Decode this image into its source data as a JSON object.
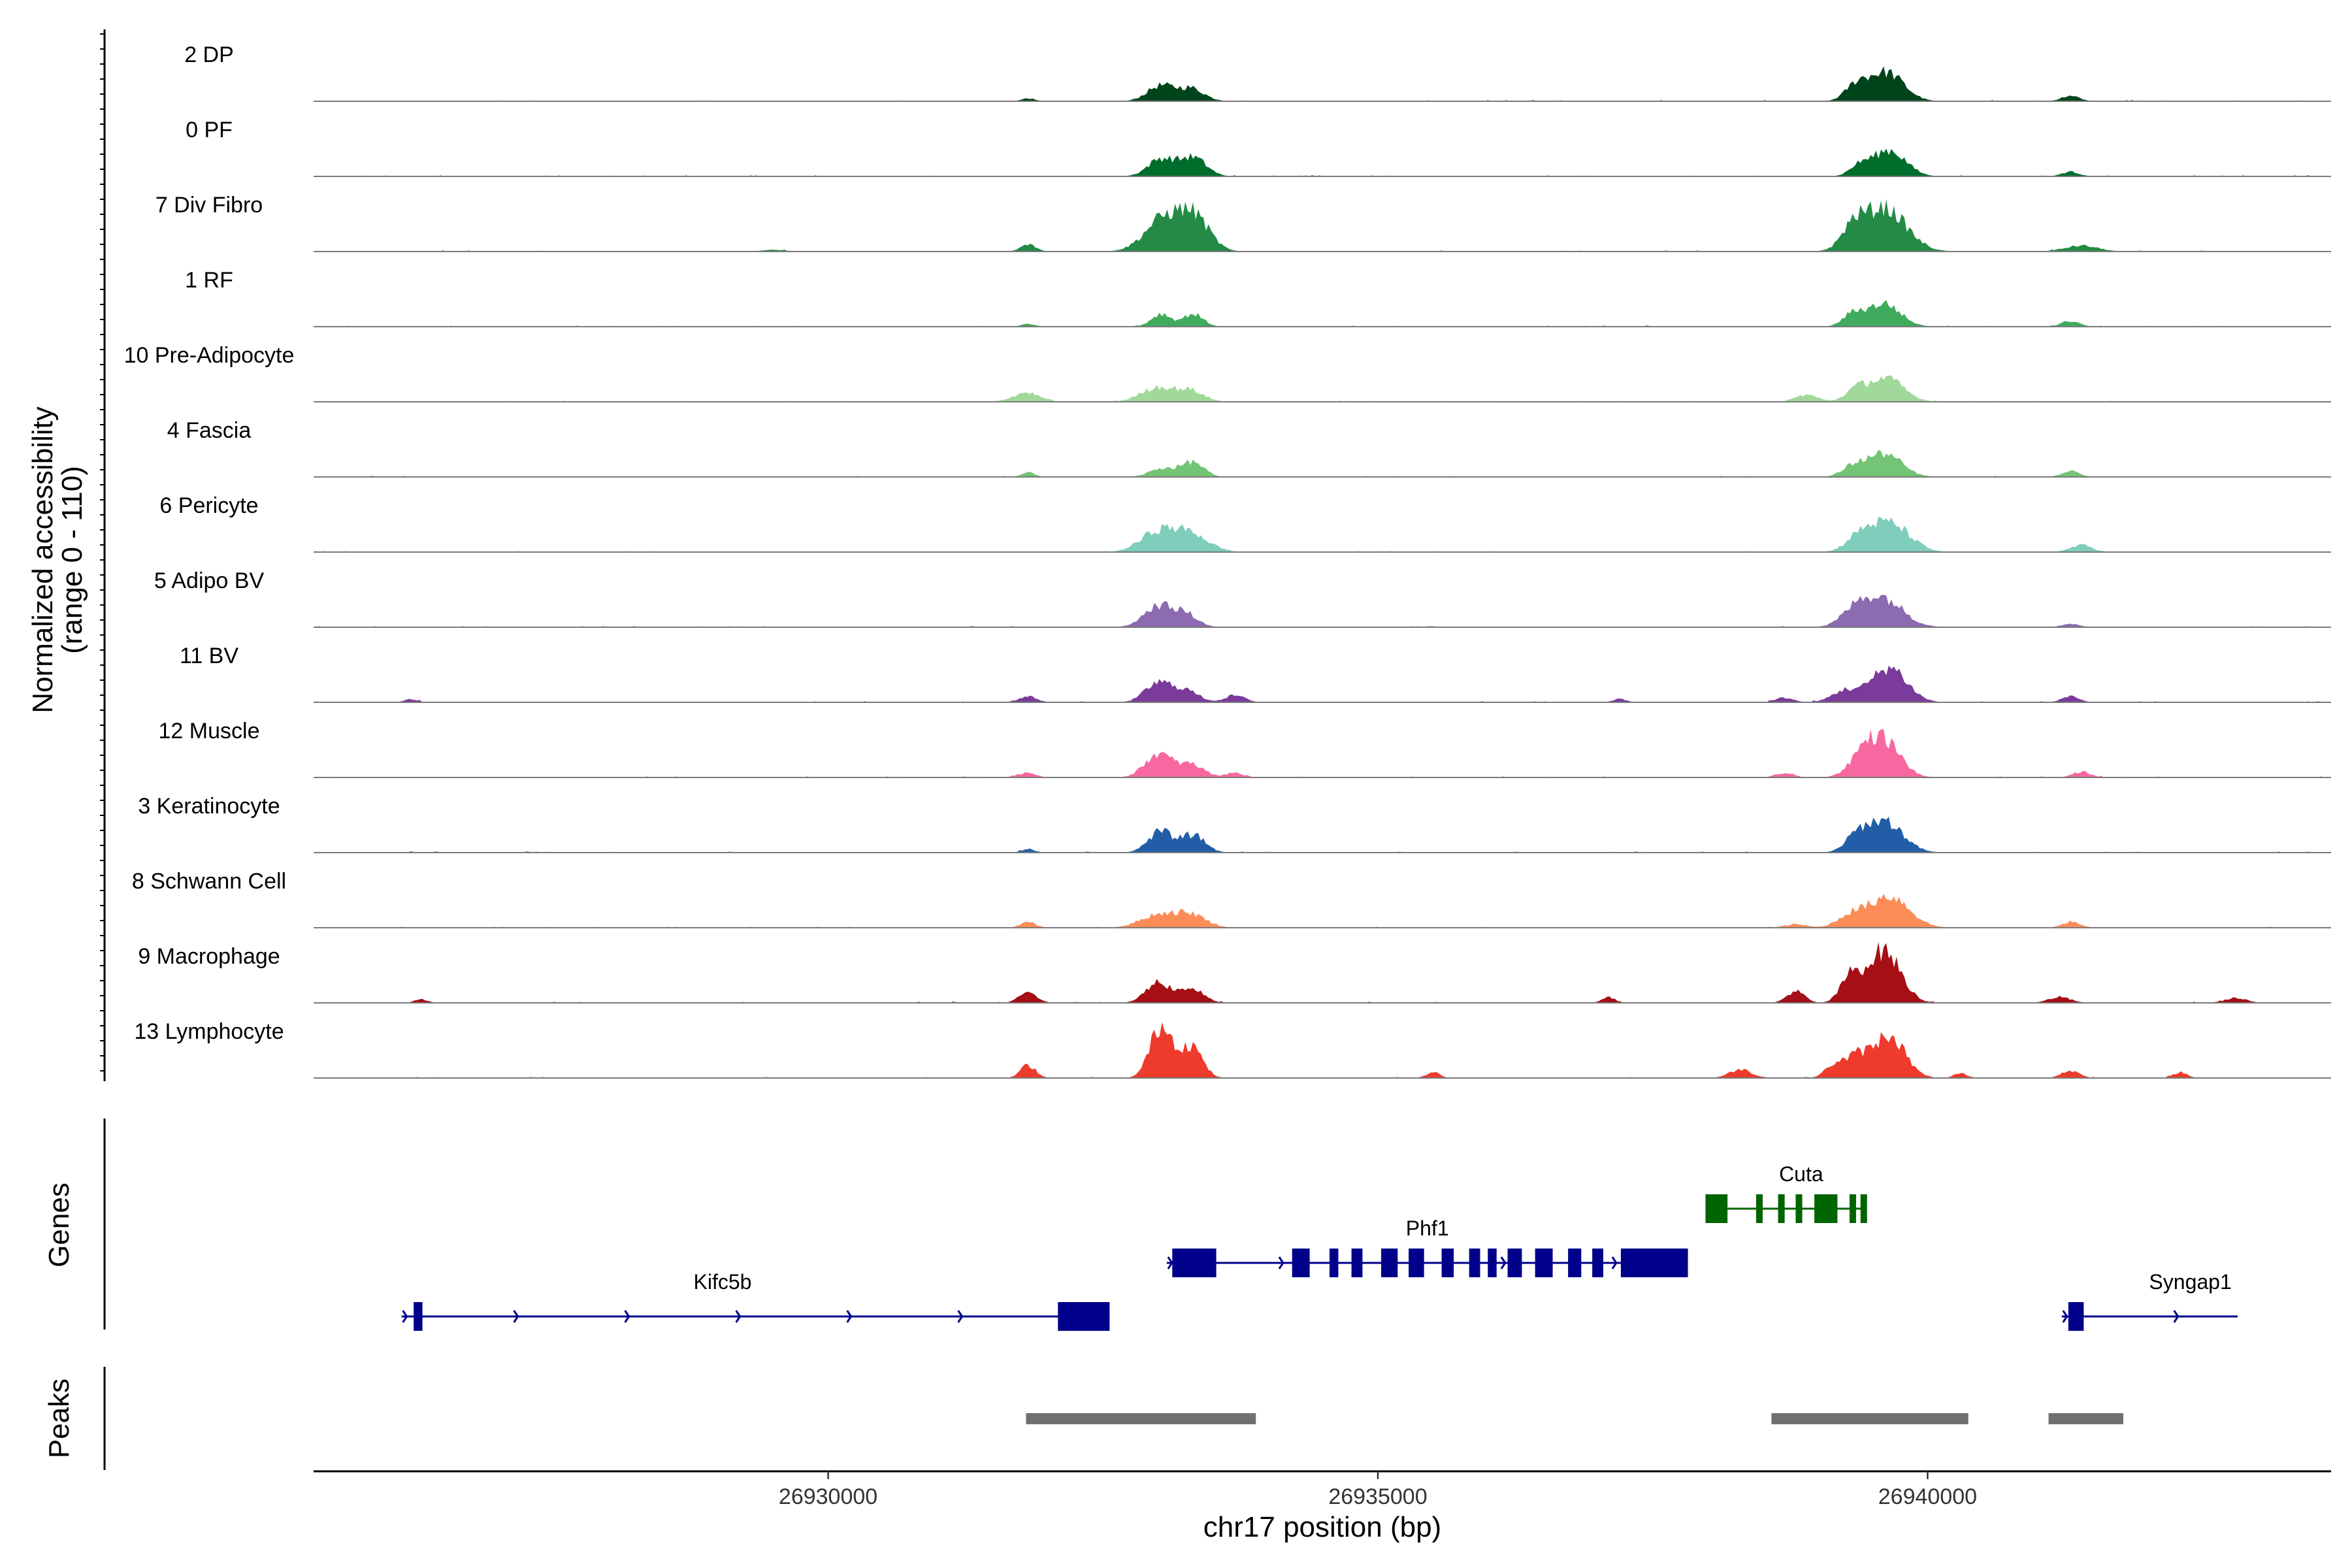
{
  "chart_data": {
    "type": "area",
    "chromosome": "chr17",
    "xlabel": "chr17 position (bp)",
    "ylabel_line1": "Normalized accessibility",
    "ylabel_line2": "(range 0 - 110)",
    "y_range": [
      0,
      110
    ],
    "x_range": [
      26925320,
      26943670
    ],
    "x_ticks": [
      {
        "value": 26930000,
        "label": "26930000"
      },
      {
        "value": 26935000,
        "label": "26935000"
      },
      {
        "value": 26940000,
        "label": "26940000"
      }
    ],
    "tracks": [
      {
        "name": "2 DP",
        "color": "#00441b",
        "peaks": [
          [
            26933020,
            26,
            120
          ],
          [
            26933300,
            22,
            120
          ],
          [
            26939620,
            50,
            160
          ],
          [
            26939350,
            24,
            100
          ],
          [
            26941300,
            10,
            80
          ],
          [
            26931820,
            5,
            60
          ]
        ]
      },
      {
        "name": "0 PF",
        "color": "#006d2c",
        "peaks": [
          [
            26933030,
            30,
            120
          ],
          [
            26933320,
            32,
            120
          ],
          [
            26939650,
            45,
            150
          ],
          [
            26939380,
            16,
            90
          ],
          [
            26941300,
            8,
            80
          ]
        ]
      },
      {
        "name": "7 Div Fibro",
        "color": "#238b45",
        "peaks": [
          [
            26933050,
            55,
            170
          ],
          [
            26933330,
            55,
            140
          ],
          [
            26939600,
            75,
            200
          ],
          [
            26939320,
            30,
            100
          ],
          [
            26931820,
            12,
            70
          ],
          [
            26941400,
            10,
            150
          ],
          [
            26929500,
            3,
            100
          ]
        ]
      },
      {
        "name": "1 RF",
        "color": "#41ab5d",
        "peaks": [
          [
            26933030,
            22,
            90
          ],
          [
            26933320,
            22,
            90
          ],
          [
            26939600,
            40,
            150
          ],
          [
            26939320,
            20,
            90
          ],
          [
            26941300,
            10,
            80
          ],
          [
            26931820,
            5,
            60
          ]
        ]
      },
      {
        "name": "10 Pre-Adipocyte",
        "color": "#a1d99b",
        "peaks": [
          [
            26933000,
            25,
            150
          ],
          [
            26933300,
            18,
            120
          ],
          [
            26939620,
            40,
            160
          ],
          [
            26939350,
            18,
            100
          ],
          [
            26931800,
            16,
            120
          ],
          [
            26938900,
            12,
            100
          ]
        ]
      },
      {
        "name": "4 Fascia",
        "color": "#74c476",
        "peaks": [
          [
            26933050,
            15,
            120
          ],
          [
            26933320,
            25,
            100
          ],
          [
            26939600,
            40,
            160
          ],
          [
            26939320,
            15,
            100
          ],
          [
            26941300,
            10,
            80
          ],
          [
            26931820,
            8,
            60
          ]
        ]
      },
      {
        "name": "6 Pericyte",
        "color": "#7fcdbb",
        "peaks": [
          [
            26933000,
            34,
            160
          ],
          [
            26933300,
            30,
            160
          ],
          [
            26939650,
            50,
            180
          ],
          [
            26939380,
            22,
            120
          ],
          [
            26941400,
            12,
            100
          ]
        ]
      },
      {
        "name": "5 Adipo BV",
        "color": "#8c6bb1",
        "peaks": [
          [
            26933000,
            36,
            130
          ],
          [
            26933250,
            22,
            110
          ],
          [
            26939600,
            48,
            180
          ],
          [
            26939350,
            26,
            130
          ],
          [
            26941300,
            6,
            80
          ]
        ]
      },
      {
        "name": "11 BV",
        "color": "#7a3b9a",
        "peaks": [
          [
            26933000,
            32,
            120
          ],
          [
            26933250,
            20,
            120
          ],
          [
            26939650,
            60,
            160
          ],
          [
            26939250,
            20,
            120
          ],
          [
            26931820,
            10,
            80
          ],
          [
            26933700,
            12,
            90
          ],
          [
            26941300,
            10,
            80
          ],
          [
            26938700,
            8,
            80
          ],
          [
            26937200,
            6,
            60
          ],
          [
            26926200,
            5,
            60
          ]
        ]
      },
      {
        "name": "12 Muscle",
        "color": "#f768a1",
        "peaks": [
          [
            26933000,
            40,
            120
          ],
          [
            26933300,
            22,
            120
          ],
          [
            26939600,
            62,
            150
          ],
          [
            26939400,
            30,
            120
          ],
          [
            26931800,
            8,
            80
          ],
          [
            26941400,
            10,
            80
          ],
          [
            26933700,
            8,
            80
          ],
          [
            26938700,
            8,
            80
          ]
        ]
      },
      {
        "name": "3 Keratinocyte",
        "color": "#225ea8",
        "peaks": [
          [
            26933020,
            36,
            110
          ],
          [
            26933320,
            30,
            110
          ],
          [
            26939600,
            55,
            170
          ],
          [
            26939350,
            20,
            100
          ],
          [
            26931820,
            6,
            60
          ]
        ]
      },
      {
        "name": "8 Schwann Cell",
        "color": "#fc8d59",
        "peaks": [
          [
            26933000,
            22,
            160
          ],
          [
            26933300,
            22,
            140
          ],
          [
            26939650,
            55,
            180
          ],
          [
            26939300,
            20,
            120
          ],
          [
            26931820,
            10,
            70
          ],
          [
            26941300,
            10,
            80
          ],
          [
            26938800,
            6,
            100
          ]
        ]
      },
      {
        "name": "9 Macrophage",
        "color": "#a50f15",
        "peaks": [
          [
            26933000,
            35,
            110
          ],
          [
            26933300,
            25,
            110
          ],
          [
            26939600,
            90,
            150
          ],
          [
            26939300,
            42,
            90
          ],
          [
            26938800,
            20,
            80
          ],
          [
            26931820,
            18,
            80
          ],
          [
            26937100,
            10,
            60
          ],
          [
            26941200,
            10,
            100
          ],
          [
            26942800,
            8,
            100
          ],
          [
            26926300,
            6,
            60
          ]
        ]
      },
      {
        "name": "13 Lymphocyte",
        "color": "#ef3b2c",
        "peaks": [
          [
            26933030,
            90,
            100
          ],
          [
            26933300,
            55,
            100
          ],
          [
            26939650,
            75,
            140
          ],
          [
            26939350,
            35,
            100
          ],
          [
            26939150,
            22,
            80
          ],
          [
            26931820,
            22,
            70
          ],
          [
            26938300,
            15,
            100
          ],
          [
            26941300,
            12,
            80
          ],
          [
            26935500,
            10,
            60
          ],
          [
            26942300,
            10,
            60
          ],
          [
            26940300,
            8,
            60
          ]
        ]
      }
    ],
    "genes_panel_title": "Genes",
    "genes": [
      {
        "name": "Kifc5b",
        "strand": "+",
        "color": "#00008b",
        "start": 26926120,
        "end": 26932560,
        "label_pos": 26929040,
        "row": 2,
        "exons": [
          [
            26926230,
            26926310
          ],
          [
            26932090,
            26932560
          ]
        ]
      },
      {
        "name": "Phf1",
        "strand": "+",
        "color": "#00008b",
        "start": 26933080,
        "end": 26937820,
        "label_pos": 26935450,
        "row": 1,
        "exons": [
          [
            26933130,
            26933530
          ],
          [
            26934220,
            26934380
          ],
          [
            26934560,
            26934640
          ],
          [
            26934760,
            26934860
          ],
          [
            26935030,
            26935180
          ],
          [
            26935280,
            26935420
          ],
          [
            26935580,
            26935690
          ],
          [
            26935830,
            26935930
          ],
          [
            26936000,
            26936080
          ],
          [
            26936180,
            26936310
          ],
          [
            26936430,
            26936590
          ],
          [
            26936730,
            26936850
          ],
          [
            26936950,
            26937050
          ],
          [
            26937210,
            26937820
          ]
        ]
      },
      {
        "name": "Cuta",
        "strand": "-",
        "color": "#006400",
        "start": 26937980,
        "end": 26939440,
        "label_pos": 26938850,
        "row": 0,
        "exons": [
          [
            26937980,
            26938180
          ],
          [
            26938440,
            26938500
          ],
          [
            26938640,
            26938700
          ],
          [
            26938800,
            26938860
          ],
          [
            26938970,
            26939180
          ],
          [
            26939290,
            26939330
          ],
          [
            26939390,
            26939440
          ]
        ]
      },
      {
        "name": "Syngap1",
        "strand": "+",
        "color": "#00008b",
        "start": 26941220,
        "end": 26942820,
        "label_pos": 26942390,
        "row": 2,
        "exons": [
          [
            26941280,
            26941420
          ]
        ]
      }
    ],
    "peaks_panel_title": "Peaks",
    "peak_regions": [
      [
        26931800,
        26933890
      ],
      [
        26938580,
        26940370
      ],
      [
        26941100,
        26941780
      ]
    ]
  }
}
